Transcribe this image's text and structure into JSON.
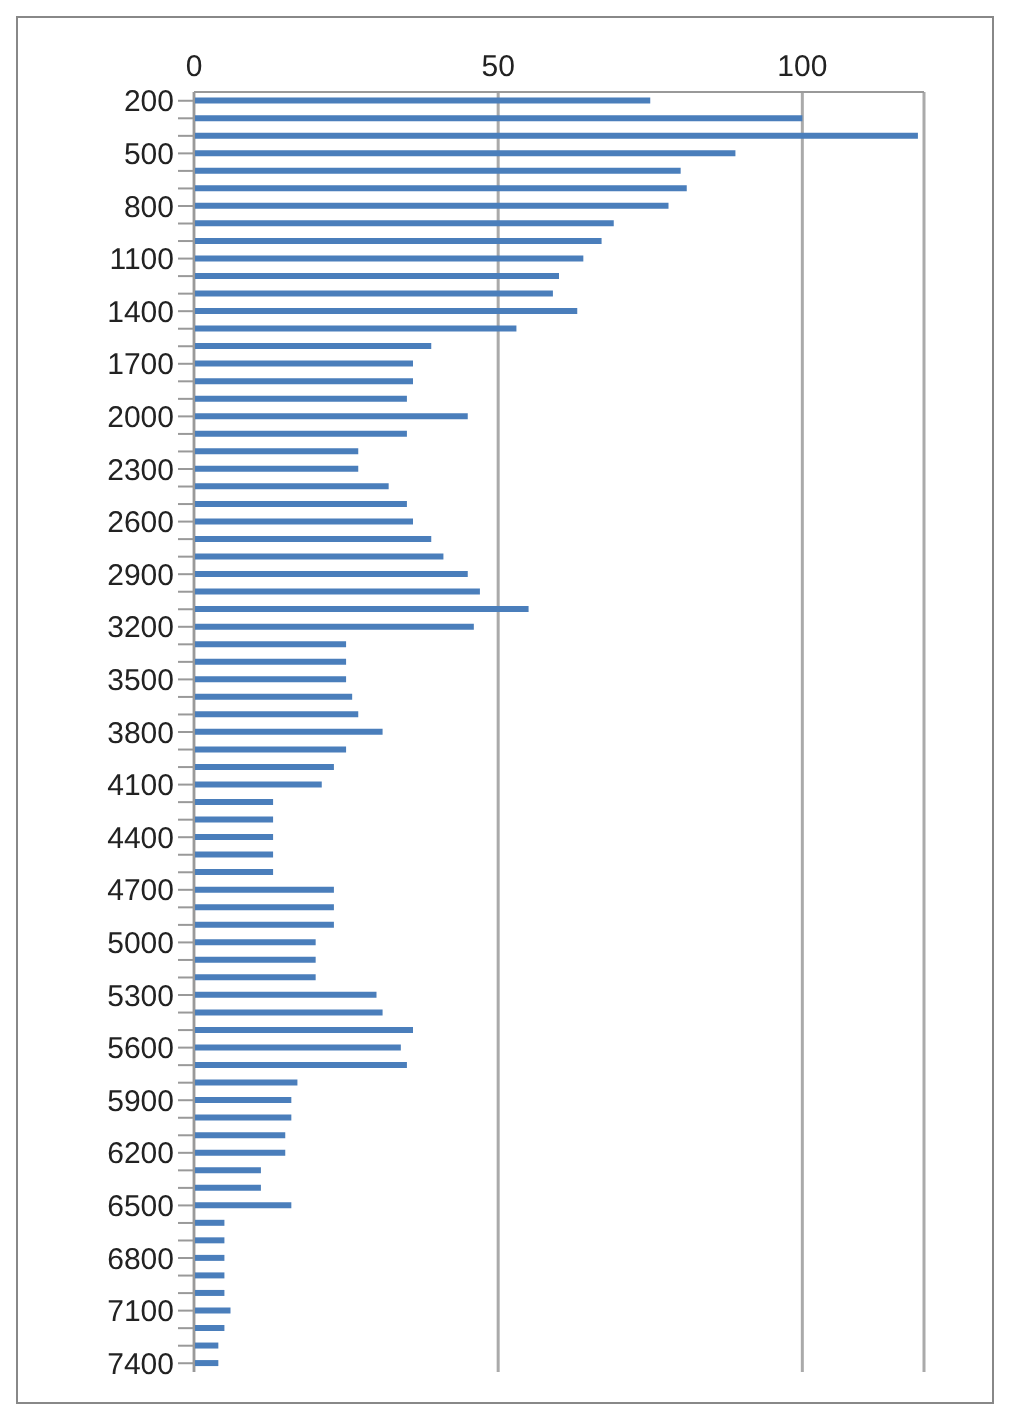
{
  "chart_data": {
    "type": "bar",
    "orientation": "horizontal",
    "categories": [
      "200",
      null,
      null,
      "500",
      null,
      null,
      "800",
      null,
      null,
      "1100",
      null,
      null,
      "1400",
      null,
      null,
      "1700",
      null,
      null,
      "2000",
      null,
      null,
      "2300",
      null,
      null,
      "2600",
      null,
      null,
      "2900",
      null,
      null,
      "3200",
      null,
      null,
      "3500",
      null,
      null,
      "3800",
      null,
      null,
      "4100",
      null,
      null,
      "4400",
      null,
      null,
      "4700",
      null,
      null,
      "5000",
      null,
      null,
      "5300",
      null,
      null,
      "5600",
      null,
      null,
      "5900",
      null,
      null,
      "6200",
      null,
      null,
      "6500",
      null,
      null,
      "6800",
      null,
      null,
      "7100",
      null,
      null,
      "7400"
    ],
    "values": [
      75,
      100,
      119,
      89,
      80,
      81,
      78,
      69,
      67,
      64,
      60,
      59,
      63,
      53,
      39,
      36,
      36,
      35,
      45,
      35,
      27,
      27,
      32,
      35,
      36,
      39,
      41,
      45,
      47,
      55,
      46,
      25,
      25,
      25,
      26,
      27,
      31,
      25,
      23,
      21,
      13,
      13,
      13,
      13,
      13,
      23,
      23,
      23,
      20,
      20,
      20,
      30,
      31,
      36,
      34,
      35,
      17,
      16,
      16,
      15,
      15,
      11,
      11,
      16,
      5,
      5,
      5,
      5,
      5,
      6,
      5,
      4,
      4
    ],
    "color": "#4a7ebb",
    "xlim": [
      0,
      120
    ],
    "xticks": [
      0,
      50,
      100
    ],
    "grid": "x"
  }
}
